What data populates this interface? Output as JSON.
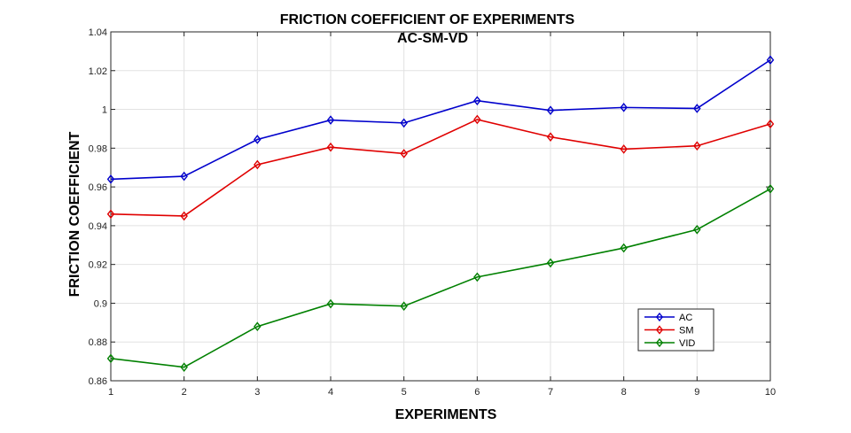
{
  "chart_data": {
    "type": "line",
    "title": "FRICTION COEFFICIENT  OF EXPERIMENTS",
    "subtitle": "AC-SM-VD",
    "xlabel": "EXPERIMENTS",
    "ylabel": "FRICTION COEFFICIENT",
    "x": [
      1,
      2,
      3,
      4,
      5,
      6,
      7,
      8,
      9,
      10
    ],
    "xlim": [
      1,
      10
    ],
    "ylim": [
      0.86,
      1.04
    ],
    "xticks": [
      "1",
      "2",
      "3",
      "4",
      "5",
      "6",
      "7",
      "8",
      "9",
      "10"
    ],
    "yticks": [
      "0.86",
      "0.88",
      "0.9",
      "0.92",
      "0.94",
      "0.96",
      "0.98",
      "1",
      "1.02",
      "1.04"
    ],
    "ytick_values": [
      0.86,
      0.88,
      0.9,
      0.92,
      0.94,
      0.96,
      0.98,
      1.0,
      1.02,
      1.04
    ],
    "grid": true,
    "legend_position": "bottom-right",
    "marker": "diamond",
    "series": [
      {
        "name": "AC",
        "color": "#0000cc",
        "values": [
          0.964,
          0.9655,
          0.9845,
          0.9945,
          0.993,
          1.0045,
          0.9995,
          1.001,
          1.0005,
          1.0255
        ]
      },
      {
        "name": "SM",
        "color": "#e00000",
        "values": [
          0.946,
          0.945,
          0.9715,
          0.9805,
          0.9772,
          0.9948,
          0.9858,
          0.9795,
          0.9812,
          0.9925
        ]
      },
      {
        "name": "VID",
        "color": "#008000",
        "values": [
          0.8715,
          0.867,
          0.888,
          0.8997,
          0.8985,
          0.9135,
          0.9208,
          0.9285,
          0.938,
          0.959
        ]
      }
    ]
  }
}
